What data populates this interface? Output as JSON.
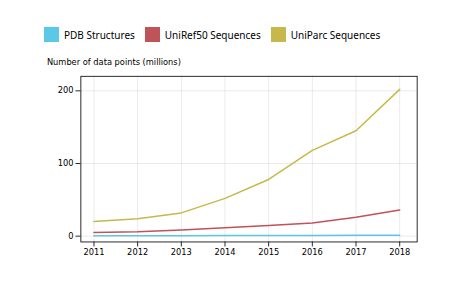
{
  "chart_data": {
    "type": "line",
    "x": [
      2011,
      2012,
      2013,
      2014,
      2015,
      2016,
      2017,
      2018
    ],
    "series": [
      {
        "name": "PDB Structures",
        "color": "#5bc8e8",
        "values": [
          0.5,
          0.6,
          0.7,
          0.8,
          0.9,
          1.0,
          1.1,
          1.2
        ]
      },
      {
        "name": "UniRef50 Sequences",
        "color": "#c0525a",
        "values": [
          5.0,
          6.0,
          8.5,
          11.5,
          14.5,
          18.0,
          26.0,
          36.0
        ]
      },
      {
        "name": "UniParc Sequences",
        "color": "#c8b84a",
        "values": [
          20.0,
          24.0,
          32.0,
          52.0,
          78.0,
          118.0,
          145.0,
          202.0
        ]
      }
    ],
    "ylabel": "Number of data points (millions)",
    "xlim": [
      2010.7,
      2018.4
    ],
    "ylim": [
      -8,
      220
    ],
    "xticks": [
      2011,
      2012,
      2013,
      2014,
      2015,
      2016,
      2017,
      2018
    ],
    "yticks": [
      0,
      100,
      200
    ],
    "grid": true
  }
}
